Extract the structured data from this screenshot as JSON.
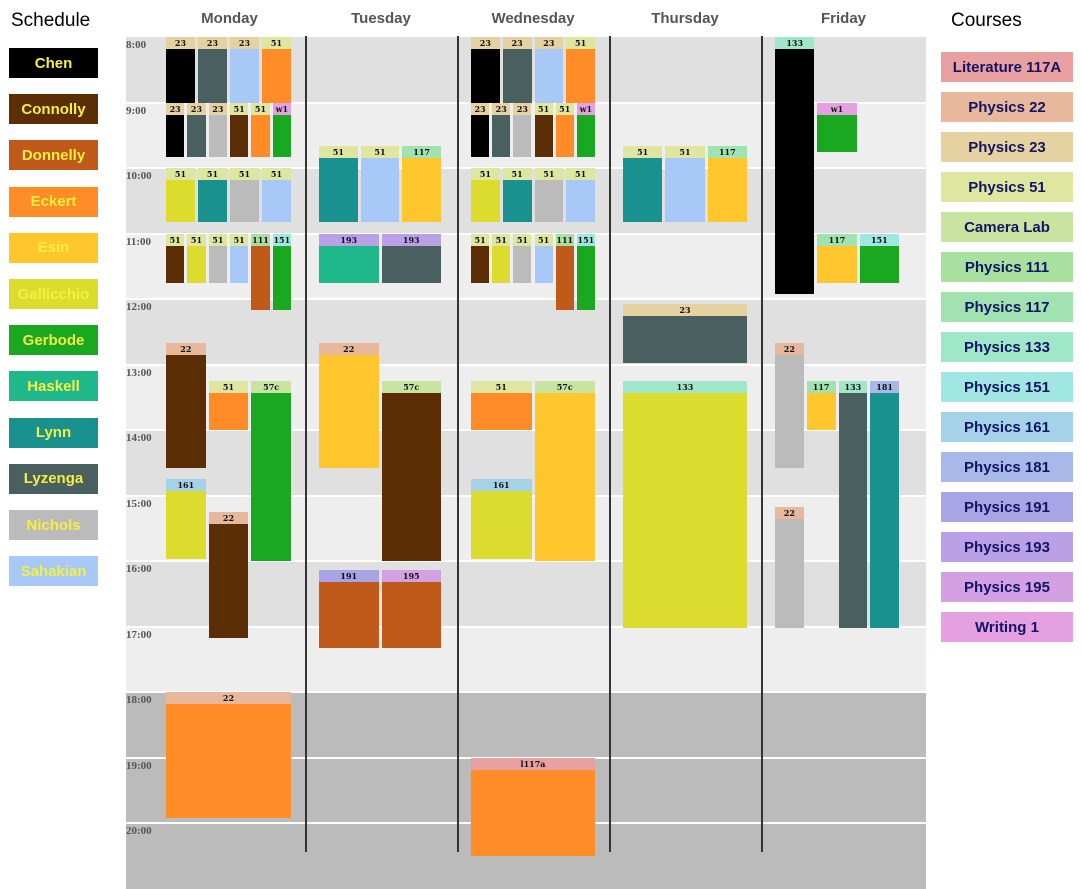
{
  "left_panel": {
    "title": "Schedule"
  },
  "right_panel": {
    "title": "Courses"
  },
  "days": [
    "Monday",
    "Tuesday",
    "Wednesday",
    "Thursday",
    "Friday"
  ],
  "hours": [
    "8:00",
    "9:00",
    "10:00",
    "11:00",
    "12:00",
    "13:00",
    "14:00",
    "15:00",
    "16:00",
    "17:00",
    "18:00",
    "19:00",
    "20:00"
  ],
  "people": [
    {
      "id": "chen",
      "name": "Chen",
      "color": "#000000"
    },
    {
      "id": "connolly",
      "name": "Connolly",
      "color": "#5c2e05"
    },
    {
      "id": "donnelly",
      "name": "Donnelly",
      "color": "#bf5a1a"
    },
    {
      "id": "eckert",
      "name": "Eckert",
      "color": "#ff8c26"
    },
    {
      "id": "esin",
      "name": "Esin",
      "color": "#ffc62e"
    },
    {
      "id": "gallicchio",
      "name": "Gallicchio",
      "color": "#dcdc2e"
    },
    {
      "id": "gerbode",
      "name": "Gerbode",
      "color": "#19a81f"
    },
    {
      "id": "haskell",
      "name": "Haskell",
      "color": "#1fb88a"
    },
    {
      "id": "lynn",
      "name": "Lynn",
      "color": "#18918f"
    },
    {
      "id": "lyzenga",
      "name": "Lyzenga",
      "color": "#4a5f5f"
    },
    {
      "id": "nichols",
      "name": "Nichols",
      "color": "#bbbbbb"
    },
    {
      "id": "sahakian",
      "name": "Sahakian",
      "color": "#a8c8f8"
    }
  ],
  "courses": [
    {
      "id": "l117a",
      "name": "Literature 117A",
      "color": "#e8a0a0"
    },
    {
      "id": "22",
      "name": "Physics 22",
      "color": "#e8b89c"
    },
    {
      "id": "23",
      "name": "Physics 23",
      "color": "#e6d2a0"
    },
    {
      "id": "51",
      "name": "Physics 51",
      "color": "#dfe6a0"
    },
    {
      "id": "camera",
      "name": "Camera Lab",
      "color": "#c8e4a0"
    },
    {
      "id": "111",
      "name": "Physics 111",
      "color": "#a8e0a0"
    },
    {
      "id": "117",
      "name": "Physics 117",
      "color": "#a0e2b0"
    },
    {
      "id": "133",
      "name": "Physics 133",
      "color": "#a0e6c8"
    },
    {
      "id": "151",
      "name": "Physics 151",
      "color": "#a0e6e2"
    },
    {
      "id": "161",
      "name": "Physics 161",
      "color": "#a4d2e8"
    },
    {
      "id": "181",
      "name": "Physics 181",
      "color": "#a8b8e8"
    },
    {
      "id": "191",
      "name": "Physics 191",
      "color": "#a8a4e6"
    },
    {
      "id": "193",
      "name": "Physics 193",
      "color": "#baa0e6"
    },
    {
      "id": "195",
      "name": "Physics 195",
      "color": "#d4a0e4"
    },
    {
      "id": "w1",
      "name": "Writing 1",
      "color": "#e4a0e0"
    }
  ],
  "events": [
    {
      "day": 0,
      "col": 0,
      "ncol": 4,
      "start": 8,
      "end": 9,
      "course": "23",
      "label": "23",
      "person": "chen"
    },
    {
      "day": 0,
      "col": 1,
      "ncol": 4,
      "start": 8,
      "end": 9,
      "course": "23",
      "label": "23",
      "person": "lyzenga"
    },
    {
      "day": 0,
      "col": 2,
      "ncol": 4,
      "start": 8,
      "end": 9,
      "course": "23",
      "label": "23",
      "person": "sahakian"
    },
    {
      "day": 0,
      "col": 3,
      "ncol": 4,
      "start": 8,
      "end": 9,
      "course": "51",
      "label": "51",
      "person": "eckert"
    },
    {
      "day": 0,
      "col": 0,
      "ncol": 6,
      "start": 9,
      "end": 9.83,
      "course": "23",
      "label": "23",
      "person": "chen"
    },
    {
      "day": 0,
      "col": 1,
      "ncol": 6,
      "start": 9,
      "end": 9.83,
      "course": "23",
      "label": "23",
      "person": "lyzenga"
    },
    {
      "day": 0,
      "col": 2,
      "ncol": 6,
      "start": 9,
      "end": 9.83,
      "course": "23",
      "label": "23",
      "person": "nichols"
    },
    {
      "day": 0,
      "col": 3,
      "ncol": 6,
      "start": 9,
      "end": 9.83,
      "course": "51",
      "label": "51",
      "person": "connolly"
    },
    {
      "day": 0,
      "col": 4,
      "ncol": 6,
      "start": 9,
      "end": 9.83,
      "course": "51",
      "label": "51",
      "person": "eckert"
    },
    {
      "day": 0,
      "col": 5,
      "ncol": 6,
      "start": 9,
      "end": 9.83,
      "course": "w1",
      "label": "w1",
      "person": "gerbode"
    },
    {
      "day": 0,
      "col": 0,
      "ncol": 4,
      "start": 10,
      "end": 10.83,
      "course": "51",
      "label": "51",
      "person": "gallicchio"
    },
    {
      "day": 0,
      "col": 1,
      "ncol": 4,
      "start": 10,
      "end": 10.83,
      "course": "51",
      "label": "51",
      "person": "lynn"
    },
    {
      "day": 0,
      "col": 2,
      "ncol": 4,
      "start": 10,
      "end": 10.83,
      "course": "51",
      "label": "51",
      "person": "nichols"
    },
    {
      "day": 0,
      "col": 3,
      "ncol": 4,
      "start": 10,
      "end": 10.83,
      "course": "51",
      "label": "51",
      "person": "sahakian"
    },
    {
      "day": 0,
      "col": 0,
      "ncol": 6,
      "start": 11,
      "end": 11.75,
      "course": "51",
      "label": "51",
      "person": "connolly"
    },
    {
      "day": 0,
      "col": 1,
      "ncol": 6,
      "start": 11,
      "end": 11.75,
      "course": "51",
      "label": "51",
      "person": "gallicchio"
    },
    {
      "day": 0,
      "col": 2,
      "ncol": 6,
      "start": 11,
      "end": 11.75,
      "course": "51",
      "label": "51",
      "person": "nichols"
    },
    {
      "day": 0,
      "col": 3,
      "ncol": 6,
      "start": 11,
      "end": 11.75,
      "course": "51",
      "label": "51",
      "person": "sahakian"
    },
    {
      "day": 0,
      "col": 4,
      "ncol": 6,
      "start": 11,
      "end": 12.17,
      "course": "111",
      "label": "111",
      "person": "donnelly"
    },
    {
      "day": 0,
      "col": 5,
      "ncol": 6,
      "start": 11,
      "end": 12.17,
      "course": "151",
      "label": "151",
      "person": "gerbode"
    },
    {
      "day": 0,
      "col": 0,
      "ncol": 3,
      "start": 12.67,
      "end": 14.58,
      "course": "22",
      "label": "22",
      "person": "connolly"
    },
    {
      "day": 0,
      "col": 1,
      "ncol": 3,
      "start": 13.25,
      "end": 14,
      "course": "51",
      "label": "51",
      "person": "eckert"
    },
    {
      "day": 0,
      "col": 2,
      "ncol": 3,
      "start": 13.25,
      "end": 16,
      "course": "camera",
      "label": "57c",
      "person": "gerbode"
    },
    {
      "day": 0,
      "col": 0,
      "ncol": 3,
      "start": 14.75,
      "end": 15.97,
      "course": "161",
      "label": "161",
      "person": "gallicchio"
    },
    {
      "day": 0,
      "col": 1,
      "ncol": 3,
      "start": 15.25,
      "end": 17.17,
      "course": "22",
      "label": "22",
      "person": "connolly"
    },
    {
      "day": 0,
      "col": 0,
      "ncol": 1,
      "start": 18,
      "end": 19.92,
      "course": "22",
      "label": "22",
      "person": "eckert"
    },
    {
      "day": 1,
      "col": 0,
      "ncol": 3,
      "start": 9.67,
      "end": 10.83,
      "course": "51",
      "label": "51",
      "person": "lynn"
    },
    {
      "day": 1,
      "col": 1,
      "ncol": 3,
      "start": 9.67,
      "end": 10.83,
      "course": "51",
      "label": "51",
      "person": "sahakian"
    },
    {
      "day": 1,
      "col": 2,
      "ncol": 3,
      "start": 9.67,
      "end": 10.83,
      "course": "117",
      "label": "117",
      "person": "esin"
    },
    {
      "day": 1,
      "col": 0,
      "ncol": 2,
      "start": 11,
      "end": 11.75,
      "course": "193",
      "label": "193",
      "person": "haskell"
    },
    {
      "day": 1,
      "col": 1,
      "ncol": 2,
      "start": 11,
      "end": 11.75,
      "course": "193",
      "label": "193",
      "person": "lyzenga"
    },
    {
      "day": 1,
      "col": 0,
      "ncol": 2,
      "start": 12.67,
      "end": 14.58,
      "course": "22",
      "label": "22",
      "person": "esin"
    },
    {
      "day": 1,
      "col": 1,
      "ncol": 2,
      "start": 13.25,
      "end": 16,
      "course": "camera",
      "label": "57c",
      "person": "connolly"
    },
    {
      "day": 1,
      "col": 0,
      "ncol": 2,
      "start": 16.13,
      "end": 17.33,
      "course": "191",
      "label": "191",
      "person": "donnelly"
    },
    {
      "day": 1,
      "col": 1,
      "ncol": 2,
      "start": 16.13,
      "end": 17.33,
      "course": "195",
      "label": "195",
      "person": "donnelly"
    },
    {
      "day": 2,
      "col": 0,
      "ncol": 4,
      "start": 8,
      "end": 9,
      "course": "23",
      "label": "23",
      "person": "chen"
    },
    {
      "day": 2,
      "col": 1,
      "ncol": 4,
      "start": 8,
      "end": 9,
      "course": "23",
      "label": "23",
      "person": "lyzenga"
    },
    {
      "day": 2,
      "col": 2,
      "ncol": 4,
      "start": 8,
      "end": 9,
      "course": "23",
      "label": "23",
      "person": "sahakian"
    },
    {
      "day": 2,
      "col": 3,
      "ncol": 4,
      "start": 8,
      "end": 9,
      "course": "51",
      "label": "51",
      "person": "eckert"
    },
    {
      "day": 2,
      "col": 0,
      "ncol": 6,
      "start": 9,
      "end": 9.83,
      "course": "23",
      "label": "23",
      "person": "chen"
    },
    {
      "day": 2,
      "col": 1,
      "ncol": 6,
      "start": 9,
      "end": 9.83,
      "course": "23",
      "label": "23",
      "person": "lyzenga"
    },
    {
      "day": 2,
      "col": 2,
      "ncol": 6,
      "start": 9,
      "end": 9.83,
      "course": "23",
      "label": "23",
      "person": "nichols"
    },
    {
      "day": 2,
      "col": 3,
      "ncol": 6,
      "start": 9,
      "end": 9.83,
      "course": "51",
      "label": "51",
      "person": "connolly"
    },
    {
      "day": 2,
      "col": 4,
      "ncol": 6,
      "start": 9,
      "end": 9.83,
      "course": "51",
      "label": "51",
      "person": "eckert"
    },
    {
      "day": 2,
      "col": 5,
      "ncol": 6,
      "start": 9,
      "end": 9.83,
      "course": "w1",
      "label": "w1",
      "person": "gerbode"
    },
    {
      "day": 2,
      "col": 0,
      "ncol": 4,
      "start": 10,
      "end": 10.83,
      "course": "51",
      "label": "51",
      "person": "gallicchio"
    },
    {
      "day": 2,
      "col": 1,
      "ncol": 4,
      "start": 10,
      "end": 10.83,
      "course": "51",
      "label": "51",
      "person": "lynn"
    },
    {
      "day": 2,
      "col": 2,
      "ncol": 4,
      "start": 10,
      "end": 10.83,
      "course": "51",
      "label": "51",
      "person": "nichols"
    },
    {
      "day": 2,
      "col": 3,
      "ncol": 4,
      "start": 10,
      "end": 10.83,
      "course": "51",
      "label": "51",
      "person": "sahakian"
    },
    {
      "day": 2,
      "col": 0,
      "ncol": 6,
      "start": 11,
      "end": 11.75,
      "course": "51",
      "label": "51",
      "person": "connolly"
    },
    {
      "day": 2,
      "col": 1,
      "ncol": 6,
      "start": 11,
      "end": 11.75,
      "course": "51",
      "label": "51",
      "person": "gallicchio"
    },
    {
      "day": 2,
      "col": 2,
      "ncol": 6,
      "start": 11,
      "end": 11.75,
      "course": "51",
      "label": "51",
      "person": "nichols"
    },
    {
      "day": 2,
      "col": 3,
      "ncol": 6,
      "start": 11,
      "end": 11.75,
      "course": "51",
      "label": "51",
      "person": "sahakian"
    },
    {
      "day": 2,
      "col": 4,
      "ncol": 6,
      "start": 11,
      "end": 12.17,
      "course": "111",
      "label": "111",
      "person": "donnelly"
    },
    {
      "day": 2,
      "col": 5,
      "ncol": 6,
      "start": 11,
      "end": 12.17,
      "course": "151",
      "label": "151",
      "person": "gerbode"
    },
    {
      "day": 2,
      "col": 0,
      "ncol": 2,
      "start": 13.25,
      "end": 14,
      "course": "51",
      "label": "51",
      "person": "eckert"
    },
    {
      "day": 2,
      "col": 1,
      "ncol": 2,
      "start": 13.25,
      "end": 16,
      "course": "camera",
      "label": "57c",
      "person": "esin"
    },
    {
      "day": 2,
      "col": 0,
      "ncol": 2,
      "start": 14.75,
      "end": 15.97,
      "course": "161",
      "label": "161",
      "person": "gallicchio"
    },
    {
      "day": 2,
      "col": 0,
      "ncol": 1,
      "start": 19,
      "end": 20.5,
      "course": "l117a",
      "label": "l117a",
      "person": "eckert"
    },
    {
      "day": 3,
      "col": 0,
      "ncol": 3,
      "start": 9.67,
      "end": 10.83,
      "course": "51",
      "label": "51",
      "person": "lynn"
    },
    {
      "day": 3,
      "col": 1,
      "ncol": 3,
      "start": 9.67,
      "end": 10.83,
      "course": "51",
      "label": "51",
      "person": "sahakian"
    },
    {
      "day": 3,
      "col": 2,
      "ncol": 3,
      "start": 9.67,
      "end": 10.83,
      "course": "117",
      "label": "117",
      "person": "esin"
    },
    {
      "day": 3,
      "col": 0,
      "ncol": 1,
      "start": 12.08,
      "end": 12.97,
      "course": "23",
      "label": "23",
      "person": "lyzenga"
    },
    {
      "day": 3,
      "col": 0,
      "ncol": 1,
      "start": 13.25,
      "end": 17.03,
      "course": "133",
      "label": "133",
      "person": "gallicchio"
    },
    {
      "day": 4,
      "col": 0,
      "ncol": 3,
      "start": 8,
      "end": 11.92,
      "course": "133",
      "label": "133",
      "person": "chen"
    },
    {
      "day": 4,
      "col": 1,
      "ncol": 3,
      "start": 9,
      "end": 9.75,
      "course": "w1",
      "label": "w1",
      "person": "gerbode"
    },
    {
      "day": 4,
      "col": 1,
      "ncol": 3,
      "start": 11,
      "end": 11.75,
      "course": "117",
      "label": "117",
      "person": "esin"
    },
    {
      "day": 4,
      "col": 2,
      "ncol": 3,
      "start": 11,
      "end": 11.75,
      "course": "151",
      "label": "151",
      "person": "gerbode"
    },
    {
      "day": 4,
      "col": 0,
      "ncol": 4,
      "start": 12.67,
      "end": 14.58,
      "course": "22",
      "label": "22",
      "person": "nichols"
    },
    {
      "day": 4,
      "col": 1,
      "ncol": 4,
      "start": 13.25,
      "end": 14,
      "course": "117",
      "label": "117",
      "person": "esin"
    },
    {
      "day": 4,
      "col": 2,
      "ncol": 4,
      "start": 13.25,
      "end": 17.03,
      "course": "133",
      "label": "133",
      "person": "lyzenga"
    },
    {
      "day": 4,
      "col": 3,
      "ncol": 4,
      "start": 13.25,
      "end": 17.03,
      "course": "181",
      "label": "181",
      "person": "lynn"
    },
    {
      "day": 4,
      "col": 0,
      "ncol": 4,
      "start": 15.17,
      "end": 17.03,
      "course": "22",
      "label": "22",
      "person": "nichols"
    }
  ]
}
